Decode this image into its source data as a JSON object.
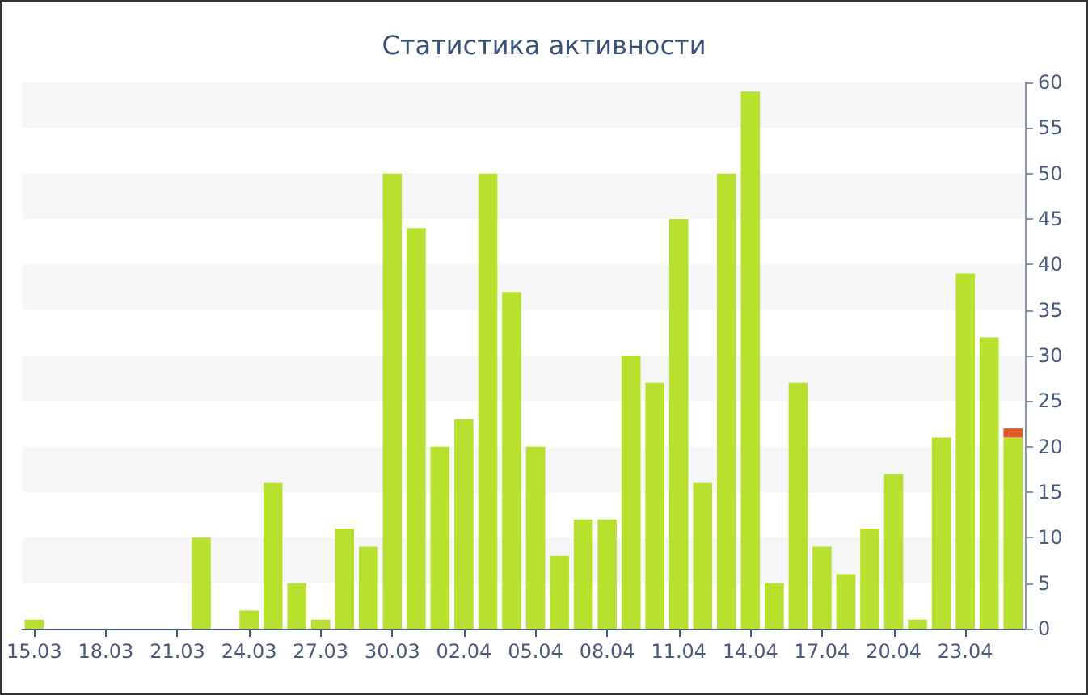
{
  "chart_data": {
    "type": "bar",
    "title": "Статистика активности",
    "categories": [
      "15.03",
      null,
      null,
      "18.03",
      null,
      null,
      "21.03",
      null,
      null,
      "24.03",
      null,
      null,
      "27.03",
      null,
      null,
      "30.03",
      null,
      null,
      "02.04",
      null,
      null,
      "05.04",
      null,
      null,
      "08.04",
      null,
      null,
      "11.04",
      null,
      null,
      "14.04",
      null,
      null,
      "17.04",
      null,
      null,
      "20.04",
      null,
      null,
      "23.04",
      null,
      null
    ],
    "series": [
      {
        "color": "#b8e02e",
        "values": [
          1,
          0,
          0,
          0,
          0,
          0,
          0,
          10,
          0,
          2,
          16,
          5,
          1,
          11,
          9,
          50,
          44,
          20,
          23,
          50,
          37,
          20,
          8,
          12,
          12,
          30,
          27,
          45,
          16,
          50,
          59,
          5,
          27,
          9,
          6,
          11,
          17,
          1,
          21,
          39,
          32,
          21
        ]
      },
      {
        "color": "#e0572a",
        "values": [
          null,
          null,
          null,
          null,
          null,
          null,
          null,
          null,
          null,
          null,
          null,
          null,
          null,
          null,
          null,
          null,
          null,
          null,
          null,
          null,
          null,
          null,
          null,
          null,
          null,
          null,
          null,
          null,
          null,
          null,
          null,
          null,
          null,
          null,
          null,
          null,
          null,
          null,
          null,
          null,
          null,
          1
        ]
      }
    ],
    "ylim": [
      0,
      60
    ],
    "yticks": [
      0,
      5,
      10,
      15,
      20,
      25,
      30,
      35,
      40,
      45,
      50,
      55,
      60
    ],
    "stacked": true
  }
}
